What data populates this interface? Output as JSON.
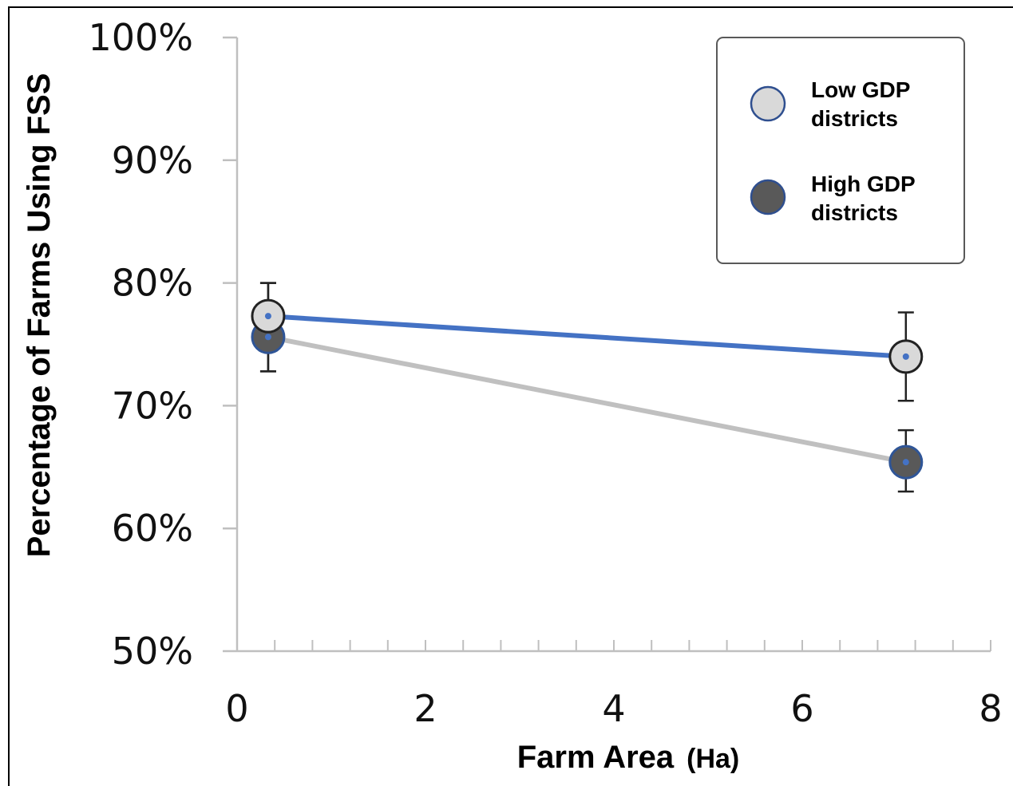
{
  "chart_data": {
    "type": "scatter",
    "xlabel": "Farm Area",
    "xlabel_unit": "(Ha)",
    "ylabel": "Percentage of Farms Using FSS",
    "xlim": [
      0,
      8
    ],
    "ylim": [
      50,
      100
    ],
    "x_ticks": [
      "0",
      "2",
      "4",
      "6",
      "8"
    ],
    "y_ticks": [
      "50%",
      "60%",
      "70%",
      "80%",
      "90%",
      "100%"
    ],
    "legend_position": "top-right",
    "series": [
      {
        "name": "Low GDP districts",
        "x": [
          0.33,
          7.1
        ],
        "y": [
          77.3,
          74.0
        ],
        "err_low": [
          72.8,
          70.4
        ],
        "err_high": [
          80.0,
          77.6
        ],
        "marker_color": "#d9d9d9",
        "line_color": "#4472c4"
      },
      {
        "name": "High GDP districts",
        "x": [
          0.33,
          7.1
        ],
        "y": [
          75.6,
          65.4
        ],
        "err_low": [
          72.8,
          63.0
        ],
        "err_high": [
          80.0,
          68.0
        ],
        "marker_color": "#595959",
        "line_color": "#c0c0c0"
      }
    ]
  },
  "legend": {
    "items": [
      {
        "line1": "Low GDP",
        "line2": "districts"
      },
      {
        "line1": "High GDP",
        "line2": "districts"
      }
    ]
  }
}
